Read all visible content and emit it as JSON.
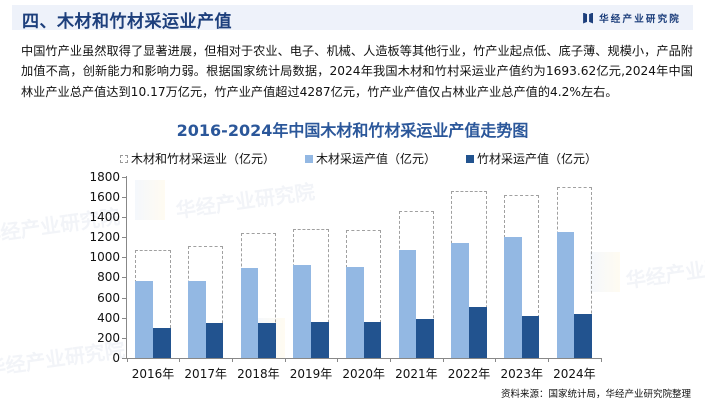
{
  "header": {
    "title": "四、木材和竹材采运业产值",
    "brand": "华经产业研究院",
    "brand_icon": "book-logo-icon"
  },
  "intro": {
    "text": "中国竹产业虽然取得了显著进展，但相对于农业、电子、机械、人造板等其他行业，竹产业起点低、底子薄、规模小，产品附加值不高，创新能力和影响力弱。根据国家统计局数据，2024年我国木材和竹村采运业产值约为1693.62亿元,2024年中国林业产业总产值达到10.17万亿元，竹产业产值超过4287亿元，竹产业产值仅占林业产业总产值的4.2%左右。"
  },
  "watermark": "华经产业研究院",
  "source": "资料来源：国家统计局，华经产业研究院整理",
  "colors": {
    "title": "#1d3f7c",
    "chart_title": "#2b579a",
    "wood": "#93b8e3",
    "bamboo": "#22538f",
    "total_border": "#a0a0a0"
  },
  "chart_data": {
    "type": "bar",
    "title": "2016-2024年中国木材和竹材采运业产值走势图",
    "xlabel": "",
    "ylabel": "",
    "ylim": [
      0,
      1800
    ],
    "yticks": [
      0,
      200,
      400,
      600,
      800,
      1000,
      1200,
      1400,
      1600,
      1800
    ],
    "grid": false,
    "legend_position": "top",
    "categories": [
      "2016年",
      "2017年",
      "2018年",
      "2019年",
      "2020年",
      "2021年",
      "2022年",
      "2023年",
      "2024年"
    ],
    "series": [
      {
        "name": "木材和竹材采运业（亿元）",
        "style": "dashed-outline",
        "values": [
          1072,
          1114,
          1241,
          1281,
          1271,
          1460,
          1659,
          1619,
          1693.62
        ]
      },
      {
        "name": "木材采运产值（亿元）",
        "style": "solid-light-blue",
        "values": [
          766,
          766,
          896,
          925,
          905,
          1075,
          1144,
          1204,
          1254
        ]
      },
      {
        "name": "竹材采运产值（亿元）",
        "style": "solid-dark-blue",
        "values": [
          298,
          348,
          348,
          358,
          358,
          388,
          507,
          418,
          438
        ]
      }
    ]
  }
}
